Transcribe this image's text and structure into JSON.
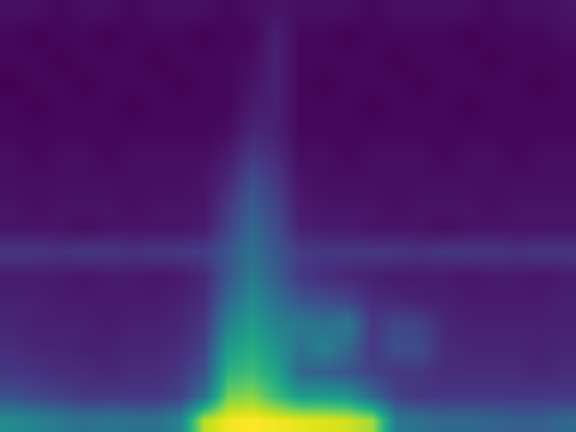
{
  "chart_data": {
    "type": "heatmap",
    "tick_labels": false,
    "xlim": [
      -0.5,
      23.5
    ],
    "ylim": [
      -0.5,
      17.5
    ],
    "cells": [
      [
        0.68,
        0.66,
        0.64,
        0.62,
        0.63,
        0.62,
        0.62,
        0.66,
        0.92,
        0.97,
        0.98,
        0.97,
        0.96,
        0.95,
        0.94,
        0.9,
        0.64,
        0.62,
        0.6,
        0.6,
        0.59,
        0.58,
        0.58,
        0.6
      ],
      [
        0.55,
        0.53,
        0.52,
        0.5,
        0.5,
        0.5,
        0.5,
        0.52,
        0.62,
        0.86,
        0.88,
        0.8,
        0.72,
        0.72,
        0.7,
        0.6,
        0.52,
        0.5,
        0.5,
        0.5,
        0.5,
        0.5,
        0.5,
        0.5
      ],
      [
        0.5,
        0.49,
        0.48,
        0.48,
        0.47,
        0.48,
        0.48,
        0.5,
        0.55,
        0.78,
        0.8,
        0.74,
        0.6,
        0.58,
        0.56,
        0.52,
        0.5,
        0.5,
        0.48,
        0.48,
        0.48,
        0.48,
        0.47,
        0.48
      ],
      [
        0.48,
        0.47,
        0.47,
        0.46,
        0.46,
        0.47,
        0.47,
        0.48,
        0.52,
        0.72,
        0.76,
        0.7,
        0.62,
        0.66,
        0.6,
        0.5,
        0.55,
        0.54,
        0.48,
        0.47,
        0.47,
        0.47,
        0.46,
        0.47
      ],
      [
        0.47,
        0.46,
        0.46,
        0.46,
        0.45,
        0.46,
        0.46,
        0.47,
        0.5,
        0.66,
        0.72,
        0.66,
        0.64,
        0.62,
        0.64,
        0.5,
        0.53,
        0.52,
        0.47,
        0.46,
        0.46,
        0.46,
        0.46,
        0.46
      ],
      [
        0.46,
        0.46,
        0.45,
        0.45,
        0.45,
        0.45,
        0.45,
        0.46,
        0.48,
        0.6,
        0.68,
        0.62,
        0.56,
        0.54,
        0.52,
        0.48,
        0.47,
        0.46,
        0.46,
        0.45,
        0.45,
        0.45,
        0.45,
        0.46
      ],
      [
        0.45,
        0.45,
        0.45,
        0.44,
        0.45,
        0.45,
        0.44,
        0.45,
        0.47,
        0.56,
        0.64,
        0.58,
        0.5,
        0.48,
        0.47,
        0.46,
        0.45,
        0.45,
        0.45,
        0.44,
        0.45,
        0.45,
        0.44,
        0.45
      ],
      [
        0.5,
        0.5,
        0.49,
        0.5,
        0.5,
        0.49,
        0.5,
        0.5,
        0.51,
        0.56,
        0.62,
        0.56,
        0.51,
        0.5,
        0.5,
        0.5,
        0.5,
        0.49,
        0.5,
        0.5,
        0.5,
        0.49,
        0.5,
        0.5
      ],
      [
        0.44,
        0.44,
        0.44,
        0.43,
        0.44,
        0.44,
        0.44,
        0.44,
        0.45,
        0.52,
        0.6,
        0.54,
        0.46,
        0.45,
        0.45,
        0.44,
        0.44,
        0.44,
        0.43,
        0.44,
        0.44,
        0.44,
        0.44,
        0.44
      ],
      [
        0.44,
        0.43,
        0.44,
        0.44,
        0.44,
        0.43,
        0.44,
        0.44,
        0.44,
        0.5,
        0.57,
        0.52,
        0.45,
        0.44,
        0.44,
        0.44,
        0.43,
        0.44,
        0.44,
        0.44,
        0.43,
        0.44,
        0.44,
        0.44
      ],
      [
        0.43,
        0.43,
        0.43,
        0.43,
        0.43,
        0.43,
        0.43,
        0.43,
        0.44,
        0.47,
        0.54,
        0.5,
        0.44,
        0.43,
        0.43,
        0.43,
        0.43,
        0.43,
        0.43,
        0.43,
        0.43,
        0.43,
        0.43,
        0.43
      ],
      [
        0.43,
        0.42,
        0.43,
        0.43,
        0.42,
        0.43,
        0.43,
        0.43,
        0.43,
        0.45,
        0.5,
        0.48,
        0.43,
        0.43,
        0.42,
        0.43,
        0.43,
        0.43,
        0.42,
        0.43,
        0.43,
        0.42,
        0.43,
        0.43
      ],
      [
        0.42,
        0.42,
        0.42,
        0.42,
        0.42,
        0.42,
        0.42,
        0.42,
        0.42,
        0.43,
        0.47,
        0.46,
        0.42,
        0.42,
        0.42,
        0.42,
        0.42,
        0.42,
        0.42,
        0.42,
        0.42,
        0.42,
        0.42,
        0.42
      ],
      [
        0.42,
        0.41,
        0.42,
        0.42,
        0.42,
        0.41,
        0.42,
        0.42,
        0.42,
        0.42,
        0.45,
        0.46,
        0.42,
        0.42,
        0.42,
        0.41,
        0.42,
        0.42,
        0.42,
        0.41,
        0.42,
        0.42,
        0.42,
        0.42
      ],
      [
        0.41,
        0.42,
        0.42,
        0.41,
        0.42,
        0.42,
        0.42,
        0.41,
        0.42,
        0.42,
        0.44,
        0.46,
        0.42,
        0.41,
        0.42,
        0.42,
        0.42,
        0.41,
        0.42,
        0.42,
        0.42,
        0.42,
        0.41,
        0.42
      ],
      [
        0.42,
        0.42,
        0.41,
        0.42,
        0.42,
        0.42,
        0.41,
        0.42,
        0.42,
        0.42,
        0.43,
        0.46,
        0.42,
        0.42,
        0.42,
        0.42,
        0.41,
        0.42,
        0.42,
        0.42,
        0.41,
        0.42,
        0.42,
        0.42
      ],
      [
        0.42,
        0.41,
        0.42,
        0.42,
        0.41,
        0.42,
        0.42,
        0.42,
        0.41,
        0.42,
        0.42,
        0.46,
        0.42,
        0.42,
        0.41,
        0.42,
        0.42,
        0.42,
        0.42,
        0.41,
        0.42,
        0.42,
        0.42,
        0.43
      ],
      [
        0.43,
        0.43,
        0.42,
        0.43,
        0.43,
        0.42,
        0.43,
        0.43,
        0.43,
        0.42,
        0.43,
        0.44,
        0.43,
        0.43,
        0.43,
        0.42,
        0.43,
        0.43,
        0.43,
        0.43,
        0.42,
        0.43,
        0.43,
        0.44
      ]
    ]
  }
}
